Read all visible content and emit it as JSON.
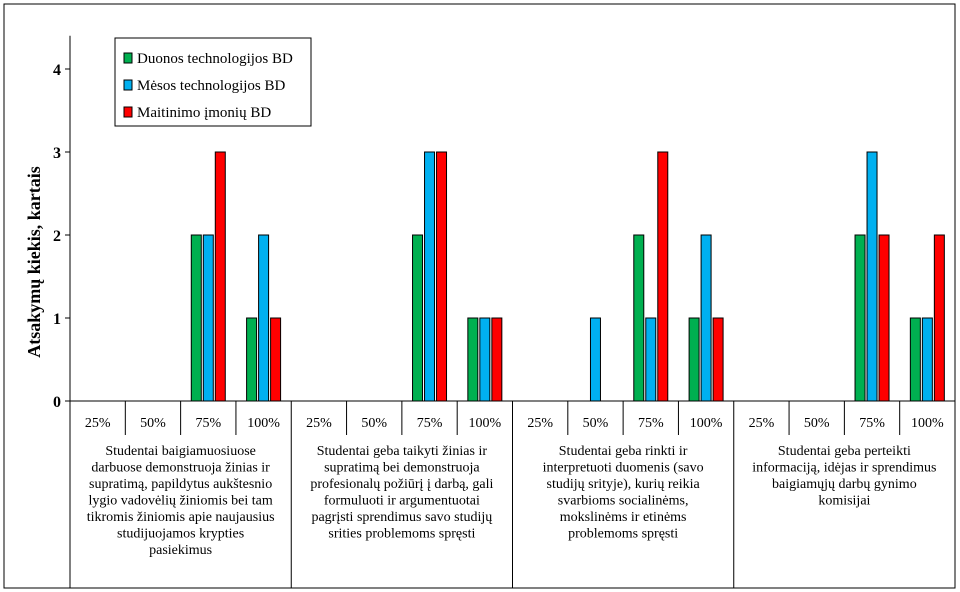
{
  "chart_data": {
    "type": "bar",
    "ylabel": "Atsakymų  kiekis,  kartais",
    "ylim": [
      0,
      4.4
    ],
    "y_ticks": [
      "0",
      "1",
      "2",
      "3",
      "4"
    ],
    "grid": false,
    "legend_position": "top-left",
    "subcategories": [
      "25%",
      "50%",
      "75%",
      "100%"
    ],
    "groups": [
      {
        "label_lines": [
          "Studentai baigiamuosiuose",
          "darbuose demonstruoja žinias ir",
          "supratimą, papildytus aukštesnio",
          "lygio vadovėlių žiniomis bei tam",
          "tikromis žiniomis apie naujausius",
          "studijuojamos krypties",
          "pasiekimus"
        ]
      },
      {
        "label_lines": [
          "Studentai geba taikyti žinias ir",
          "supratimą bei demonstruoja",
          "profesionalų požiūrį į darbą, gali",
          "formuluoti ir argumentuotai",
          "pagrįsti sprendimus savo studijų",
          "srities problemoms spręsti"
        ]
      },
      {
        "label_lines": [
          "Studentai geba rinkti ir",
          "interpretuoti duomenis (savo",
          "studijų srityje), kurių reikia",
          "svarbioms socialinėms,",
          "mokslinėms ir etinėms",
          "problemoms spręsti"
        ]
      },
      {
        "label_lines": [
          "Studentai geba perteikti",
          "informaciją, idėjas ir sprendimus",
          "baigiamųjų darbų gynimo",
          "komisijai"
        ]
      }
    ],
    "series": [
      {
        "name": "Duonos technologijos BD",
        "color": "#00b050",
        "values": [
          0,
          0,
          2,
          1,
          0,
          0,
          2,
          1,
          0,
          0,
          2,
          1,
          0,
          0,
          2,
          1
        ]
      },
      {
        "name": "Mėsos technologijos BD",
        "color": "#00b0f0",
        "values": [
          0,
          0,
          2,
          2,
          0,
          0,
          3,
          1,
          0,
          1,
          1,
          2,
          0,
          0,
          3,
          1
        ]
      },
      {
        "name": "Maitinimo įmonių BD",
        "color": "#ff0000",
        "values": [
          0,
          0,
          3,
          1,
          0,
          0,
          3,
          1,
          0,
          0,
          3,
          1,
          0,
          0,
          2,
          2
        ]
      }
    ]
  }
}
